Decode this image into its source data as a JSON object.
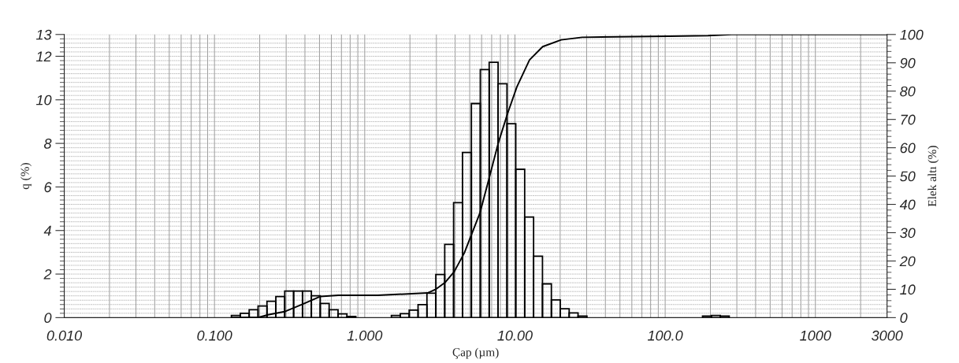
{
  "chart_data": {
    "type": "histogram",
    "xlabel": "Çap (µm)",
    "ylabel": "q (%)",
    "y2label": "Elek altı (%)",
    "log": "x",
    "grid": true,
    "xlim": [
      0.01,
      3000
    ],
    "xticks": [
      {
        "value": 0.01,
        "label": "0.010"
      },
      {
        "value": 0.1,
        "label": "0.100"
      },
      {
        "value": 1,
        "label": "1.000"
      },
      {
        "value": 10,
        "label": "10.00"
      },
      {
        "value": 100,
        "label": "100.0"
      },
      {
        "value": 1000,
        "label": "1000"
      },
      {
        "value": 3000,
        "label": "3000"
      }
    ],
    "ylim": [
      0,
      13
    ],
    "yticks": [
      0,
      2,
      4,
      6,
      8,
      10,
      12,
      13
    ],
    "y2lim": [
      0,
      100
    ],
    "y2ticks": [
      0,
      10,
      20,
      30,
      40,
      50,
      60,
      70,
      80,
      90,
      100
    ],
    "series": [
      {
        "color": "#000000",
        "bins": [
          0.1296,
          0.1485,
          0.1702,
          0.195,
          0.2235,
          0.2561,
          0.2935,
          0.3363,
          0.3853,
          0.4416,
          0.506,
          0.5798,
          0.6645,
          0.7614,
          0.8726,
          1.0,
          1.146,
          1.313,
          1.505,
          1.725,
          1.977,
          2.265,
          2.595,
          2.974,
          3.409,
          3.906,
          4.477,
          5.13,
          5.88,
          6.738,
          7.722,
          8.85,
          10.13,
          11.61,
          13.31,
          15.25,
          17.48,
          20.03,
          22.96,
          26.31,
          30.15,
          34.55,
          39.6,
          45.38,
          52.0,
          59.6,
          68.3,
          78.27,
          89.7,
          102.8,
          117.8,
          135.0,
          154.7,
          177.3,
          203.2,
          232.9,
          266.9
        ],
        "values": [
          0.1,
          0.2,
          0.36,
          0.53,
          0.75,
          0.97,
          1.22,
          1.22,
          1.22,
          1.0,
          0.65,
          0.36,
          0.17,
          0.05,
          0,
          0,
          0,
          0,
          0.1,
          0.18,
          0.34,
          0.6,
          1.12,
          1.98,
          3.36,
          5.28,
          7.58,
          9.83,
          11.39,
          11.72,
          10.74,
          8.9,
          6.81,
          4.62,
          2.82,
          1.55,
          0.81,
          0.41,
          0.22,
          0.07,
          0,
          0,
          0,
          0,
          0,
          0,
          0,
          0,
          0,
          0,
          0,
          0,
          0,
          0.07,
          0.1,
          0.07
        ]
      },
      {
        "type": "line",
        "axis": "y2",
        "color": "#000000",
        "x": [
          0.1296,
          0.1973,
          0.2275,
          0.2967,
          0.388,
          0.508,
          0.668,
          1.22,
          2.62,
          2.99,
          3.44,
          3.94,
          4.6,
          5.85,
          6.74,
          7.74,
          8.92,
          10.3,
          12.5,
          15.3,
          20.3,
          28.0,
          106,
          193,
          277,
          3000
        ],
        "values": [
          0,
          0.1,
          1,
          2.2,
          4.8,
          7.5,
          7.9,
          7.9,
          8.7,
          10.1,
          12.5,
          16.2,
          22.8,
          37,
          49.3,
          61.6,
          72,
          81.5,
          91,
          95.7,
          98.1,
          99,
          99.4,
          99.6,
          100,
          100
        ]
      }
    ]
  }
}
